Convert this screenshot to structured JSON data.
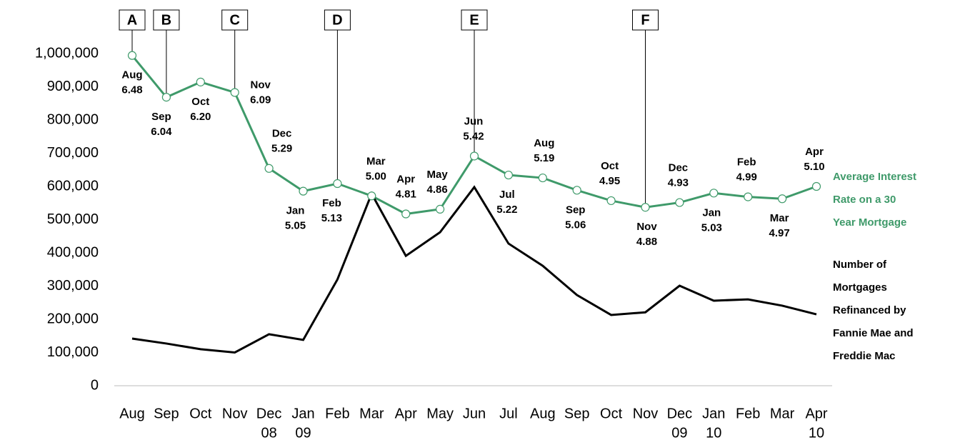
{
  "chart_data": {
    "type": "line",
    "categories": [
      "Aug",
      "Sep",
      "Oct",
      "Nov",
      "Dec",
      "Jan",
      "Feb",
      "Mar",
      "Apr",
      "May",
      "Jun",
      "Jul",
      "Aug",
      "Sep",
      "Oct",
      "Nov",
      "Dec",
      "Jan",
      "Feb",
      "Mar",
      "Apr"
    ],
    "category_years": [
      null,
      null,
      null,
      null,
      "08",
      "09",
      null,
      null,
      null,
      null,
      null,
      null,
      null,
      null,
      null,
      null,
      "09",
      "10",
      null,
      null,
      "10"
    ],
    "markers": [
      "A",
      "B",
      null,
      "C",
      null,
      null,
      "D",
      null,
      null,
      null,
      "E",
      null,
      null,
      null,
      null,
      "F",
      null,
      null,
      null,
      null,
      null
    ],
    "ylim": [
      0,
      1000000
    ],
    "yticks": [
      {
        "value": 0,
        "label": "0"
      },
      {
        "value": 100000,
        "label": "100,000"
      },
      {
        "value": 200000,
        "label": "200,000"
      },
      {
        "value": 300000,
        "label": "300,000"
      },
      {
        "value": 400000,
        "label": "400,000"
      },
      {
        "value": 500000,
        "label": "500,000"
      },
      {
        "value": 600000,
        "label": "600,000"
      },
      {
        "value": 700000,
        "label": "700,000"
      },
      {
        "value": 800000,
        "label": "800,000"
      },
      {
        "value": 900000,
        "label": "900,000"
      },
      {
        "value": 1000000,
        "label": "1,000,000"
      }
    ],
    "y2lim": [
      3,
      6.5
    ],
    "series": [
      {
        "name": "Average Interest Rate on a 30 Year Mortgage",
        "color": "#3f9a6a",
        "axis": "y2",
        "values": [
          6.48,
          6.04,
          6.2,
          6.09,
          5.29,
          5.05,
          5.13,
          5.0,
          4.81,
          4.86,
          5.42,
          5.22,
          5.19,
          5.06,
          4.95,
          4.88,
          4.93,
          5.03,
          4.99,
          4.97,
          5.1
        ],
        "value_labels": [
          "6.48",
          "6.04",
          "6.20",
          "6.09",
          "5.29",
          "5.05",
          "5.13",
          "5.00",
          "4.81",
          "4.86",
          "5.42",
          "5.22",
          "5.19",
          "5.06",
          "4.95",
          "4.88",
          "4.93",
          "5.03",
          "4.99",
          "4.97",
          "5.10"
        ]
      },
      {
        "name": "Number of Mortgages Refinanced by Fannie Mae and Freddie Mac",
        "color": "#000000",
        "values": [
          142000,
          127000,
          110000,
          100000,
          155000,
          138000,
          320000,
          578000,
          391000,
          462000,
          598000,
          428000,
          361000,
          273000,
          213000,
          221000,
          301000,
          256000,
          260000,
          241000,
          215000
        ]
      }
    ]
  }
}
